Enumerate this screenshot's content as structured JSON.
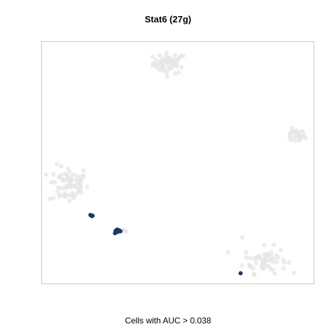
{
  "chart_data": {
    "type": "scatter",
    "title": "Stat6 (27g)",
    "caption": "Cells with AUC > 0.038",
    "xlabel": "",
    "ylabel": "",
    "xlim": [
      0,
      100
    ],
    "ylim": [
      0,
      100
    ],
    "grid": false,
    "colors": {
      "background_cells": "#e6e6e6",
      "highlighted_cells": "#173a6b"
    },
    "background_clusters": [
      {
        "center": [
          47,
          91
        ],
        "spread": [
          5.0,
          3.5
        ],
        "count": 55
      },
      {
        "center": [
          93,
          61
        ],
        "spread": [
          3.0,
          2.2
        ],
        "count": 25
      },
      {
        "center": [
          10,
          41
        ],
        "spread": [
          6.0,
          6.5
        ],
        "count": 75
      },
      {
        "center": [
          82,
          10
        ],
        "spread": [
          6.5,
          4.5
        ],
        "count": 60
      },
      {
        "center": [
          30,
          22
        ],
        "spread": [
          2.0,
          0.8
        ],
        "count": 3
      },
      {
        "center": [
          73,
          19
        ],
        "spread": [
          0.5,
          0.5
        ],
        "count": 1
      }
    ],
    "highlighted_points": [
      {
        "x": 18.0,
        "y": 28.5
      },
      {
        "x": 18.5,
        "y": 28.0
      },
      {
        "x": 18.8,
        "y": 28.2
      },
      {
        "x": 27.2,
        "y": 22.0
      },
      {
        "x": 27.8,
        "y": 22.5
      },
      {
        "x": 28.5,
        "y": 22.2
      },
      {
        "x": 29.0,
        "y": 21.8
      },
      {
        "x": 27.0,
        "y": 21.0
      },
      {
        "x": 28.0,
        "y": 21.5
      },
      {
        "x": 73.0,
        "y": 4.5
      }
    ]
  }
}
